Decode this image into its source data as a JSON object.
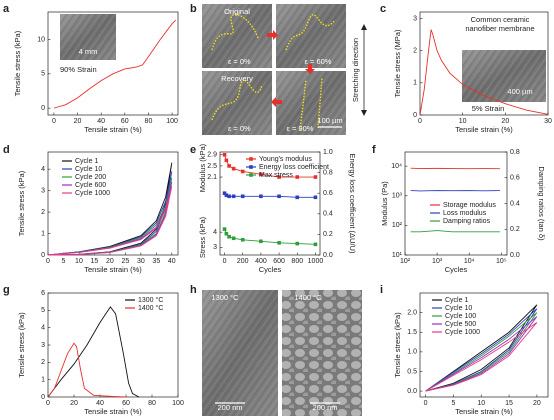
{
  "chart_data": [
    {
      "type": "line",
      "panel": "a",
      "xlabel": "Tensile strain (%)",
      "ylabel": "Tensile stress (kPa)",
      "xlim": [
        -5,
        105
      ],
      "xticks": [
        0,
        20,
        40,
        60,
        80,
        100
      ],
      "ylim": [
        -1,
        14
      ],
      "yticks": [
        0,
        5,
        10
      ],
      "annotations": [
        "90% Strain",
        "4 mm"
      ],
      "series": [
        {
          "color": "#e8302a",
          "x": [
            0,
            10,
            20,
            30,
            40,
            50,
            60,
            70,
            75,
            80,
            90,
            100,
            103
          ],
          "values": [
            0,
            0.5,
            1.5,
            2.8,
            4.0,
            5.0,
            5.7,
            6.0,
            6.3,
            7.5,
            10,
            12.3,
            12.8
          ]
        }
      ]
    },
    {
      "type": "image",
      "panel": "b",
      "labels": [
        "Original",
        "ε = 0%",
        "ε = 60%",
        "Recovery",
        "ε = 0%",
        "ε = 90%",
        "100 µm",
        "Stretching direction"
      ]
    },
    {
      "type": "line",
      "panel": "c",
      "xlabel": "Tensile strain (%)",
      "ylabel": "Tensile stress (MPa)",
      "xlim": [
        0,
        30
      ],
      "xticks": [
        0,
        10,
        20,
        30
      ],
      "ylim": [
        0,
        3.2
      ],
      "yticks": [
        0,
        1,
        2,
        3
      ],
      "annotations": [
        "Common ceramic",
        "nanofiber membrane",
        "400 µm",
        "5% Strain"
      ],
      "series": [
        {
          "color": "#e8302a",
          "x": [
            0,
            1,
            2,
            2.6,
            3,
            4,
            5,
            7,
            10,
            15,
            20,
            25,
            30
          ],
          "values": [
            0,
            0.8,
            2.0,
            2.65,
            2.5,
            2.0,
            1.7,
            1.3,
            0.95,
            0.6,
            0.35,
            0.15,
            0.02
          ]
        }
      ]
    },
    {
      "type": "line",
      "panel": "d",
      "xlabel": "Tensile strain (%)",
      "ylabel": "Tensile stress (kPa)",
      "xlim": [
        0,
        42
      ],
      "xticks": [
        0,
        5,
        10,
        15,
        20,
        25,
        30,
        35,
        40
      ],
      "ylim": [
        0,
        4.8
      ],
      "yticks": [
        0,
        1,
        2,
        3,
        4
      ],
      "series": [
        {
          "name": "Cycle 1",
          "color": "#111111",
          "x": [
            0,
            10,
            20,
            30,
            35,
            38,
            40,
            38,
            35,
            30,
            20,
            10,
            0
          ],
          "values": [
            0,
            0.15,
            0.4,
            0.9,
            1.6,
            2.7,
            4.3,
            2.4,
            1.2,
            0.55,
            0.15,
            0.03,
            0
          ]
        },
        {
          "name": "Cycle 10",
          "color": "#2b3fbf",
          "x": [
            0,
            10,
            20,
            30,
            35,
            38,
            40,
            38,
            35,
            30,
            20,
            10,
            0
          ],
          "values": [
            0,
            0.14,
            0.37,
            0.85,
            1.5,
            2.5,
            3.9,
            2.2,
            1.1,
            0.5,
            0.14,
            0.03,
            0
          ]
        },
        {
          "name": "Cycle 200",
          "color": "#2e9e3a",
          "x": [
            0,
            10,
            20,
            30,
            35,
            38,
            40,
            38,
            35,
            30,
            20,
            10,
            0
          ],
          "values": [
            0,
            0.13,
            0.35,
            0.8,
            1.4,
            2.3,
            3.6,
            2.0,
            1.0,
            0.47,
            0.13,
            0.03,
            0
          ]
        },
        {
          "name": "Cycle 600",
          "color": "#9b30c0",
          "x": [
            0,
            10,
            20,
            30,
            35,
            38,
            40,
            38,
            35,
            30,
            20,
            10,
            0
          ],
          "values": [
            0,
            0.12,
            0.33,
            0.76,
            1.3,
            2.2,
            3.4,
            1.9,
            0.95,
            0.44,
            0.12,
            0.02,
            0
          ]
        },
        {
          "name": "Cycle 1000",
          "color": "#e83a8a",
          "x": [
            0,
            10,
            20,
            30,
            35,
            38,
            40,
            38,
            35,
            30,
            20,
            10,
            0
          ],
          "values": [
            0,
            0.12,
            0.32,
            0.72,
            1.25,
            2.1,
            3.2,
            1.8,
            0.9,
            0.42,
            0.12,
            0.02,
            0
          ]
        }
      ]
    },
    {
      "type": "line",
      "panel": "e",
      "ylabel": "Modulus (kPa)",
      "xlim": [
        -50,
        1050
      ],
      "ylim": [
        1.85,
        3.0
      ],
      "yticks": [
        2.1,
        2.5,
        2.9
      ],
      "markers": true,
      "series": [
        {
          "name": "Young's modulus",
          "color": "#e8302a",
          "x": [
            0,
            20,
            50,
            100,
            200,
            400,
            600,
            800,
            1000
          ],
          "values": [
            2.9,
            2.7,
            2.5,
            2.4,
            2.3,
            2.2,
            2.1,
            2.1,
            2.1
          ]
        }
      ]
    },
    {
      "type": "line",
      "y2label": "Energy loss coefficient (ΔU/U)",
      "xlim": [
        -50,
        1050
      ],
      "y2lim": [
        0,
        1.0
      ],
      "y2ticks": [
        {
          "value": 0,
          "label": "0.0"
        },
        0.2,
        0.4,
        0.6,
        0.8,
        {
          "value": 1,
          "label": "1.0"
        }
      ],
      "markers": true,
      "series": [
        {
          "name": "Energy loss coefficient",
          "color": "#2b3fbf",
          "axis": "y2",
          "x": [
            0,
            20,
            50,
            100,
            200,
            400,
            600,
            800,
            1000
          ],
          "values": [
            0.6,
            0.58,
            0.57,
            0.57,
            0.57,
            0.57,
            0.57,
            0.56,
            0.56
          ]
        }
      ]
    },
    {
      "type": "line",
      "ylabel": "Stress (kPa)",
      "xlabel": "Cycles",
      "xlim": [
        -50,
        1050
      ],
      "xticks": [
        0,
        200,
        400,
        600,
        800,
        1000
      ],
      "ylim": [
        2.5,
        4.8
      ],
      "yticks": [
        3,
        4
      ],
      "markers": true,
      "series": [
        {
          "name": "Max stress",
          "color": "#2e9e3a",
          "x": [
            0,
            20,
            50,
            100,
            200,
            400,
            600,
            800,
            1000
          ],
          "values": [
            4.2,
            3.9,
            3.7,
            3.6,
            3.5,
            3.4,
            3.3,
            3.25,
            3.2
          ]
        }
      ]
    },
    {
      "type": "line",
      "panel": "f",
      "xlabel": "Cycles",
      "ylabel": "Modulus (Pa)",
      "y2label": "Damping ratios (tan δ)",
      "xlog": true,
      "ylog": true,
      "xlim": [
        100,
        150000
      ],
      "xticks": [
        {
          "value": 100,
          "label": "10²"
        },
        {
          "value": 1000,
          "label": "10³"
        },
        {
          "value": 10000,
          "label": "10⁴"
        },
        {
          "value": 100000,
          "label": "10⁵"
        }
      ],
      "ylim": [
        10,
        30000
      ],
      "yticks": [
        {
          "value": 10,
          "label": "10¹"
        },
        {
          "value": 100,
          "label": "10²"
        },
        {
          "value": 1000,
          "label": "10³"
        },
        {
          "value": 10000,
          "label": "10⁴"
        }
      ],
      "y2lim": [
        0,
        0.8
      ],
      "y2ticks": [
        {
          "value": 0,
          "label": "0.0"
        },
        0.2,
        0.4,
        0.6,
        0.8
      ],
      "series": [
        {
          "name": "Storage modulus",
          "color": "#e8302a",
          "x": [
            150,
            300,
            1000,
            3000,
            10000,
            30000,
            90000
          ],
          "values": [
            8500,
            8300,
            8400,
            8300,
            8200,
            8300,
            8200
          ]
        },
        {
          "name": "Loss modulus",
          "color": "#2b3fbf",
          "x": [
            150,
            300,
            1000,
            3000,
            10000,
            30000,
            90000
          ],
          "values": [
            1500,
            1450,
            1500,
            1480,
            1500,
            1470,
            1500
          ]
        },
        {
          "name": "Damping ratios",
          "color": "#2e9e3a",
          "axis": "y2",
          "x": [
            150,
            300,
            1000,
            3000,
            10000,
            30000,
            90000
          ],
          "values": [
            0.18,
            0.18,
            0.19,
            0.18,
            0.18,
            0.18,
            0.18
          ]
        }
      ]
    },
    {
      "type": "line",
      "panel": "g",
      "xlabel": "Tensile strain (%)",
      "ylabel": "Tensile stress (kPa)",
      "xlim": [
        0,
        100
      ],
      "xticks": [
        0,
        20,
        40,
        60,
        80,
        100
      ],
      "ylim": [
        0,
        6
      ],
      "yticks": [
        0,
        1,
        2,
        3,
        4,
        5,
        6
      ],
      "series": [
        {
          "name": "1300 °C",
          "color": "#111111",
          "x": [
            0,
            10,
            20,
            30,
            40,
            48,
            52,
            58,
            62,
            65,
            70
          ],
          "values": [
            0,
            1.0,
            1.9,
            3.0,
            4.3,
            5.2,
            4.8,
            2.5,
            0.8,
            0.2,
            0
          ]
        },
        {
          "name": "1400 °C",
          "color": "#e8302a",
          "x": [
            0,
            5,
            10,
            15,
            20,
            22,
            25,
            28,
            35,
            50,
            60
          ],
          "values": [
            0,
            0.5,
            1.5,
            2.5,
            3.1,
            2.9,
            1.6,
            0.5,
            0.1,
            0.03,
            0
          ]
        }
      ]
    },
    {
      "type": "image",
      "panel": "h",
      "labels": [
        "1300 °C",
        "1400 °C",
        "200 nm",
        "200 nm"
      ]
    },
    {
      "type": "line",
      "panel": "i",
      "xlabel": "Tensile strain (%)",
      "ylabel": "Tensile stress (kPa)",
      "xlim": [
        -1,
        22
      ],
      "xticks": [
        0,
        5,
        10,
        15,
        20
      ],
      "ylim": [
        -0.15,
        2.5
      ],
      "yticks": [
        {
          "value": 0,
          "label": "0.0"
        },
        0.5,
        {
          "value": 1,
          "label": "1.0"
        },
        1.5,
        {
          "value": 2,
          "label": "2.0"
        }
      ],
      "series": [
        {
          "name": "Cycle 1",
          "color": "#111111",
          "x": [
            0,
            5,
            10,
            15,
            20,
            15,
            10,
            5,
            0
          ],
          "values": [
            0,
            0.5,
            1.0,
            1.5,
            2.2,
            1.1,
            0.55,
            0.2,
            0
          ]
        },
        {
          "name": "Cycle 10",
          "color": "#2b3fbf",
          "x": [
            0,
            5,
            10,
            15,
            20,
            15,
            10,
            5,
            0
          ],
          "values": [
            0,
            0.48,
            0.95,
            1.45,
            2.1,
            1.05,
            0.5,
            0.18,
            0
          ]
        },
        {
          "name": "Cycle 100",
          "color": "#2e9e3a",
          "x": [
            0,
            5,
            10,
            15,
            20,
            15,
            10,
            5,
            0
          ],
          "values": [
            0,
            0.45,
            0.9,
            1.4,
            2.0,
            1.0,
            0.48,
            0.17,
            0
          ]
        },
        {
          "name": "Cycle 500",
          "color": "#9b30c0",
          "x": [
            0,
            5,
            10,
            15,
            20,
            15,
            10,
            5,
            0
          ],
          "values": [
            0,
            0.43,
            0.85,
            1.32,
            1.9,
            0.95,
            0.45,
            0.16,
            0
          ]
        },
        {
          "name": "Cycle 1000",
          "color": "#e83a8a",
          "x": [
            0,
            5,
            10,
            15,
            20,
            15,
            10,
            5,
            0
          ],
          "values": [
            0,
            0.4,
            0.8,
            1.25,
            1.75,
            0.9,
            0.42,
            0.15,
            0
          ]
        }
      ]
    }
  ]
}
